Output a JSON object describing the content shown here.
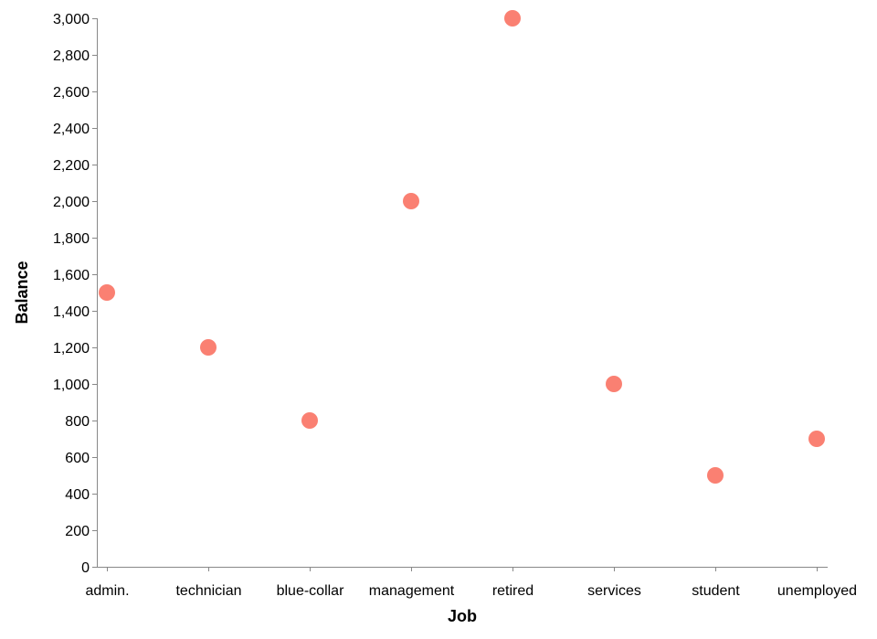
{
  "chart_data": {
    "type": "scatter",
    "xlabel": "Job",
    "ylabel": "Balance",
    "categories": [
      "admin.",
      "technician",
      "blue-collar",
      "management",
      "retired",
      "services",
      "student",
      "unemployed"
    ],
    "values": [
      1500,
      1200,
      800,
      2000,
      3000,
      1000,
      500,
      700
    ],
    "ylim": [
      0,
      3000
    ],
    "yticks": [
      0,
      200,
      400,
      600,
      800,
      1000,
      1200,
      1400,
      1600,
      1800,
      2000,
      2200,
      2400,
      2600,
      2800,
      3000
    ],
    "ytick_labels": [
      "0",
      "200",
      "400",
      "600",
      "800",
      "1,000",
      "1,200",
      "1,400",
      "1,600",
      "1,800",
      "2,000",
      "2,200",
      "2,400",
      "2,600",
      "2,800",
      "3,000"
    ],
    "grid": false,
    "point_color": "#fa8072"
  }
}
